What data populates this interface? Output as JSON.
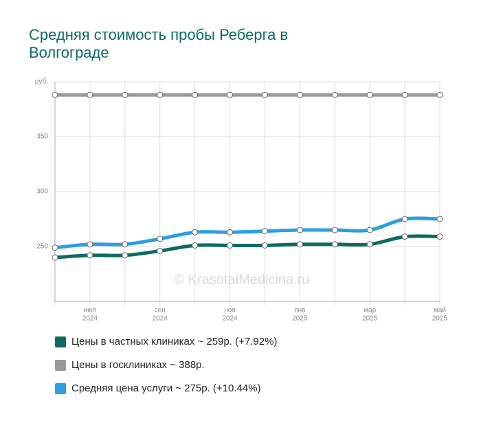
{
  "chart_data": {
    "type": "line",
    "title": [
      "Средняя стоимость пробы Реберга в",
      "Волгограде"
    ],
    "watermark": "© KrasotaiMedicina.ru",
    "categories": [
      null,
      [
        "июл",
        "2024"
      ],
      null,
      [
        "сен",
        "2024"
      ],
      null,
      [
        "ноя",
        "2024"
      ],
      null,
      [
        "янв",
        "2025"
      ],
      null,
      [
        "мар",
        "2025"
      ],
      null,
      [
        "май",
        "2025"
      ]
    ],
    "series": [
      {
        "name": "Цены в частных клиниках ~ 259р. (+7.92%)",
        "color": "#0d6b5e",
        "values": [
          240,
          242,
          242,
          246,
          251,
          251,
          251,
          252,
          252,
          252,
          259,
          259
        ]
      },
      {
        "name": "Цены в госклиниках ~ 388р.",
        "color": "#999999",
        "values": [
          388,
          388,
          388,
          388,
          388,
          388,
          388,
          388,
          388,
          388,
          388,
          388
        ]
      },
      {
        "name": "Средняя цена услуги ~ 275р. (+10.44%)",
        "color": "#2b9fe0",
        "values": [
          249,
          252,
          252,
          257,
          263,
          263,
          264,
          265,
          265,
          265,
          275,
          275
        ]
      }
    ],
    "ylim": [
      200,
      400
    ],
    "yticks": [
      250,
      300,
      350,
      {
        "value": 400,
        "label": "руб."
      }
    ],
    "grid": true
  }
}
